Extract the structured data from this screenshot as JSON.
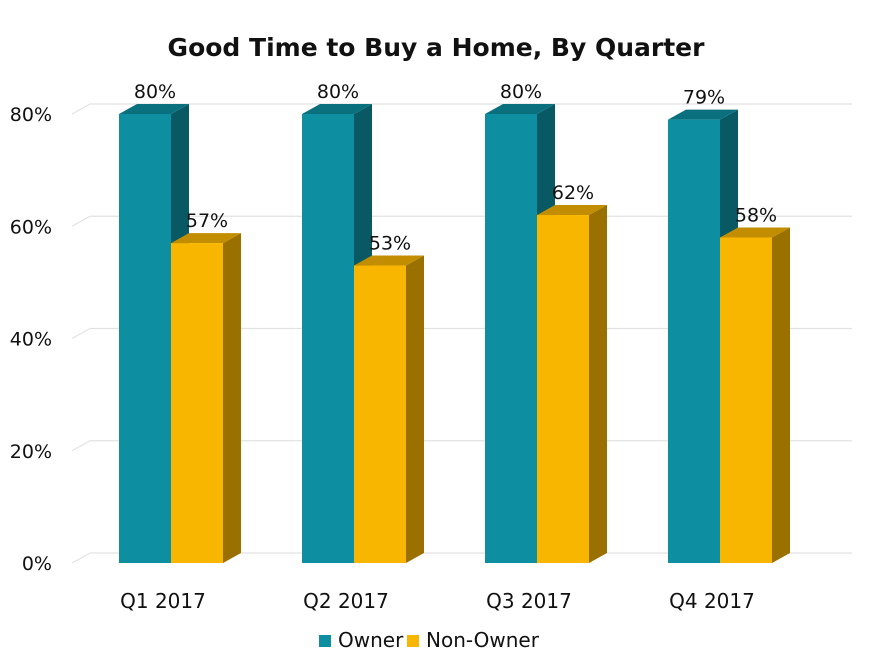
{
  "chart_data": {
    "type": "bar",
    "title": "Good Time to Buy a Home, By Quarter",
    "categories": [
      "Q1 2017",
      "Q2 2017",
      "Q3 2017",
      "Q4 2017"
    ],
    "series": [
      {
        "name": "Owner",
        "values": [
          80,
          80,
          80,
          79
        ],
        "color": "#0E8FA1"
      },
      {
        "name": "Non-Owner",
        "values": [
          57,
          53,
          62,
          58
        ],
        "color": "#F9B600"
      }
    ],
    "y_ticks": [
      "0%",
      "20%",
      "40%",
      "60%",
      "80%"
    ],
    "ylim": [
      0,
      80
    ],
    "grid": true,
    "legend_position": "bottom",
    "value_suffix": "%"
  }
}
